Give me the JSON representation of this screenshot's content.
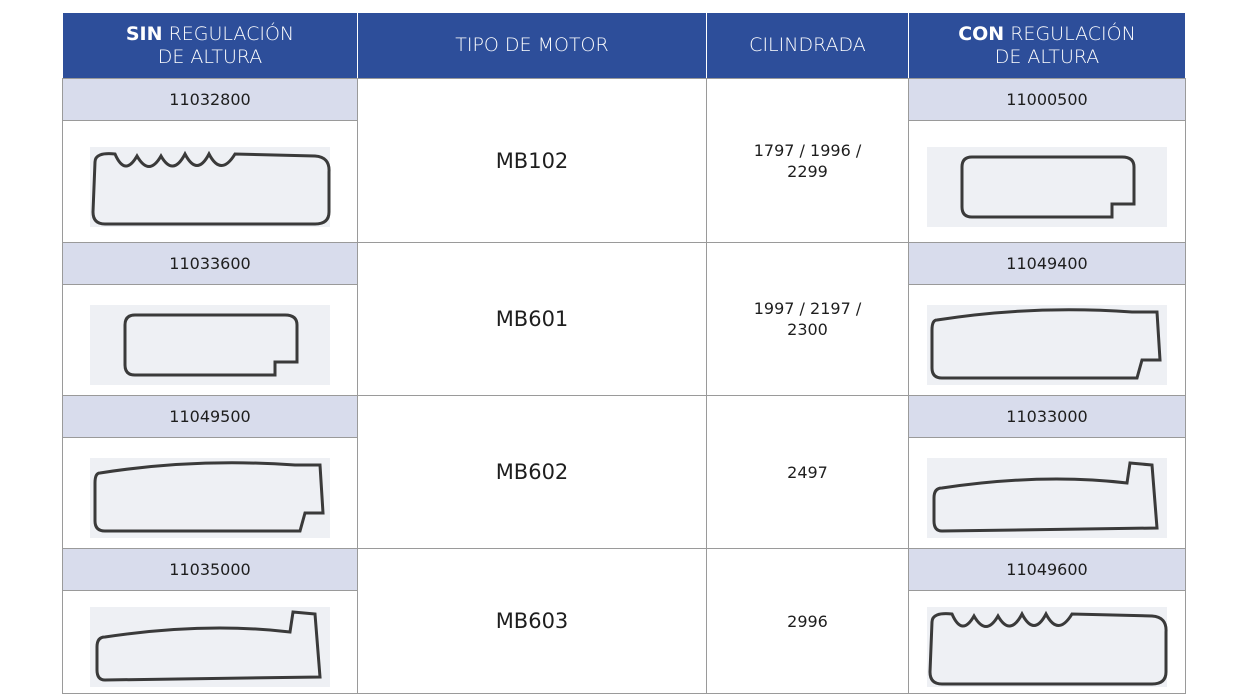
{
  "header": [
    {
      "bold": "SIN",
      "text": "REGULACIÓN DE ALTURA"
    },
    {
      "text": "TIPO DE MOTOR"
    },
    {
      "text": "CILINDRADA"
    },
    {
      "bold": "CON",
      "text": "REGULACIÓN DE ALTURA"
    }
  ],
  "rows": [
    {
      "sin": "11032800",
      "motor": "MB102",
      "cilindrada": "1797 / 1996 / 2299",
      "con": "11000500"
    },
    {
      "sin": "11033600",
      "motor": "MB601",
      "cilindrada": "1997 / 2197 / 2300",
      "con": "11049400"
    },
    {
      "sin": "11049500",
      "motor": "MB602",
      "cilindrada": "2497",
      "con": "11033000"
    },
    {
      "sin": "11035000",
      "motor": "MB603",
      "cilindrada": "2996",
      "con": "11049600"
    }
  ]
}
